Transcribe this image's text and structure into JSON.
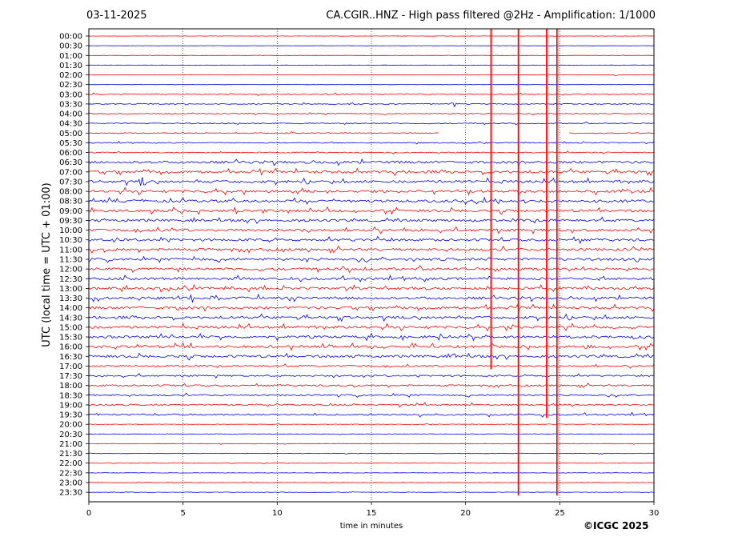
{
  "header": {
    "date": "03-11-2025",
    "title": "CA.CGIR..HNZ - High pass filtered @2Hz - Amplification: 1/1000"
  },
  "footer": {
    "copyright": "©ICGC 2025"
  },
  "chart_data": {
    "type": "helicorder",
    "xlabel": "time in minutes",
    "ylabel": "UTC (local time = UTC + 01:00)",
    "xlim": [
      0,
      30
    ],
    "x_ticks": [
      0,
      5,
      10,
      15,
      20,
      25,
      30
    ],
    "x_tick_labels": [
      "0",
      "5",
      "10",
      "15",
      "20",
      "25",
      "30"
    ],
    "grid": "dotted vertical at every 5 minutes",
    "trace_colors": [
      "#ff0000",
      "#0000ff"
    ],
    "rows": [
      "00:00",
      "00:30",
      "01:00",
      "01:30",
      "02:00",
      "02:30",
      "03:00",
      "03:30",
      "04:00",
      "04:30",
      "05:00",
      "05:30",
      "06:00",
      "06:30",
      "07:00",
      "07:30",
      "08:00",
      "08:30",
      "09:00",
      "09:30",
      "10:00",
      "10:30",
      "11:00",
      "11:30",
      "12:00",
      "12:30",
      "13:00",
      "13:30",
      "14:00",
      "14:30",
      "15:00",
      "15:30",
      "16:00",
      "16:30",
      "17:00",
      "17:30",
      "18:00",
      "18:30",
      "19:00",
      "19:30",
      "20:00",
      "20:30",
      "21:00",
      "21:30",
      "22:00",
      "22:30",
      "23:00",
      "23:30"
    ],
    "noise_rows": [
      {
        "from": 0,
        "to": 5,
        "level": 0.3
      },
      {
        "from": 6,
        "to": 12,
        "level": 1.0
      },
      {
        "from": 13,
        "to": 33,
        "level": 2.5
      },
      {
        "from": 34,
        "to": 39,
        "level": 1.6
      },
      {
        "from": 40,
        "to": 47,
        "level": 0.5
      }
    ],
    "events": [
      {
        "row": 4,
        "minute": 27.9,
        "amplitude": 2
      },
      {
        "row": 7,
        "minute": 19.4,
        "amplitude": 4
      },
      {
        "row": 14,
        "minute": 3.2,
        "amplitude": 6
      },
      {
        "row": 15,
        "minute": 2.8,
        "amplitude": 12
      },
      {
        "row": 26,
        "minute": 5.6,
        "amplitude": 6
      },
      {
        "row": 27,
        "minute": 5.4,
        "amplitude": 7
      },
      {
        "row": 27,
        "minute": 6.6,
        "amplitude": 9
      },
      {
        "row": 28,
        "minute": 4.7,
        "amplitude": 8
      },
      {
        "row": 30,
        "minute": 22.5,
        "amplitude": 5
      },
      {
        "row": 32,
        "minute": 26.5,
        "amplitude": 5
      },
      {
        "row": 33,
        "minute": 19.4,
        "amplitude": 4
      },
      {
        "row": 38,
        "minute": 7.0,
        "amplitude": 3
      },
      {
        "row": 39,
        "minute": 24.0,
        "amplitude": 4
      }
    ],
    "gaps": [
      {
        "row": 10,
        "from": 18.6,
        "to": 25.5
      }
    ],
    "long_spikes": [
      {
        "minute": 21.35,
        "from_row": 0,
        "to_row": 34
      },
      {
        "minute": 22.8,
        "from_row": 0,
        "to_row": 47
      },
      {
        "minute": 24.3,
        "from_row": 0,
        "to_row": 39
      },
      {
        "minute": 24.85,
        "from_row": 0,
        "to_row": 47
      }
    ]
  }
}
